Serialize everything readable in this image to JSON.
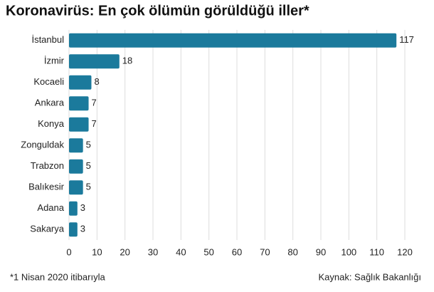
{
  "chart_data": {
    "type": "bar",
    "orientation": "horizontal",
    "title": "Koronavirüs: En çok ölümün görüldüğü iller*",
    "categories": [
      "İstanbul",
      "İzmir",
      "Kocaeli",
      "Ankara",
      "Konya",
      "Zonguldak",
      "Trabzon",
      "Balıkesir",
      "Adana",
      "Sakarya"
    ],
    "values": [
      117,
      18,
      8,
      7,
      7,
      5,
      5,
      5,
      3,
      3
    ],
    "color": "#1b7a9c",
    "xlim": [
      0,
      120
    ],
    "xticks": [
      0,
      10,
      20,
      30,
      40,
      50,
      60,
      70,
      80,
      90,
      100,
      110,
      120
    ],
    "grid": true,
    "footnote": "*1 Nisan 2020 itibarıyla",
    "source": "Kaynak: Sağlık Bakanlığı"
  }
}
